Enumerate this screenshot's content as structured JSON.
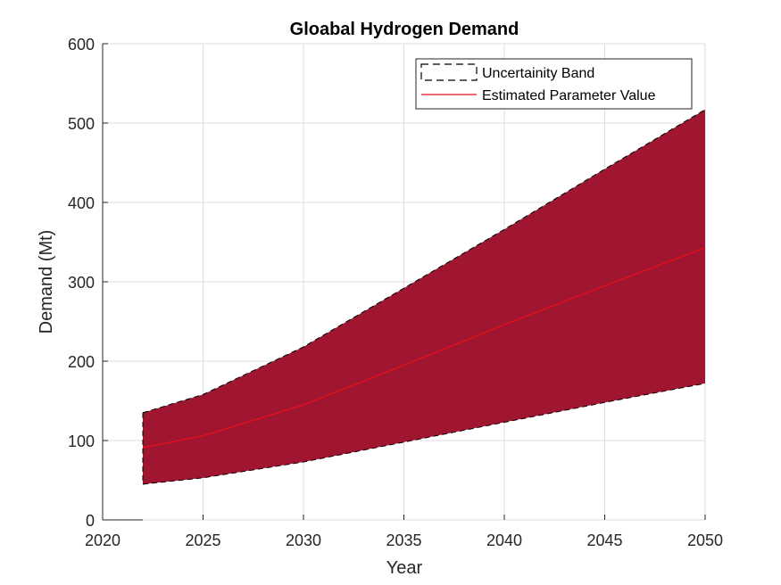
{
  "chart_data": {
    "type": "area",
    "title": "Gloabal Hydrogen Demand",
    "xlabel": "Year",
    "ylabel": "Demand (Mt)",
    "xlim": [
      2020,
      2050
    ],
    "ylim": [
      0,
      600
    ],
    "xticks": [
      2020,
      2025,
      2030,
      2035,
      2040,
      2045,
      2050
    ],
    "yticks": [
      0,
      100,
      200,
      300,
      400,
      500,
      600
    ],
    "grid": true,
    "legend_position": "top-right",
    "x": [
      2022,
      2025,
      2030,
      2035,
      2040,
      2045,
      2050
    ],
    "series": [
      {
        "name": "Uncertainity Band",
        "kind": "band",
        "lower": [
          45,
          53,
          73,
          98,
          123,
          148,
          172
        ],
        "upper": [
          135,
          158,
          218,
          292,
          366,
          442,
          517
        ]
      },
      {
        "name": "Estimated Parameter Value",
        "kind": "line",
        "values": [
          91,
          106,
          145,
          195,
          246,
          295,
          343
        ]
      }
    ],
    "colors": {
      "band_fill": "#a01530",
      "band_edge": "#000000",
      "line": "#e8101a",
      "grid": "#dedede",
      "axis": "#262626"
    }
  }
}
